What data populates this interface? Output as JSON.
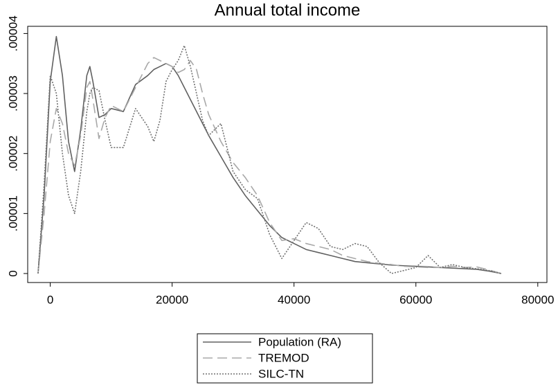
{
  "chart_data": {
    "type": "line",
    "title": "Annual total income",
    "x": [
      -2000,
      -1000,
      0,
      1000,
      2000,
      3000,
      4000,
      5000,
      6000,
      6500,
      7000,
      8000,
      9000,
      10000,
      12000,
      14000,
      16000,
      17000,
      18000,
      19000,
      20000,
      21000,
      22000,
      23000,
      24000,
      25000,
      26000,
      28000,
      30000,
      32000,
      34000,
      36000,
      38000,
      40000,
      42000,
      44000,
      46000,
      48000,
      50000,
      52000,
      54000,
      56000,
      58000,
      60000,
      62000,
      64000,
      66000,
      68000,
      70000,
      72000,
      74000
    ],
    "series": [
      {
        "name": "Population (RA)",
        "color": "#606060",
        "dash": "solid",
        "values": [
          0,
          1.3e-05,
          3.2e-05,
          3.95e-05,
          3.3e-05,
          2.2e-05,
          1.7e-05,
          2.4e-05,
          3.3e-05,
          3.45e-05,
          3.2e-05,
          2.6e-05,
          2.65e-05,
          2.75e-05,
          2.7e-05,
          3.15e-05,
          3.3e-05,
          3.4e-05,
          3.45e-05,
          3.5e-05,
          3.45e-05,
          3.3e-05,
          3.1e-05,
          2.9e-05,
          2.7e-05,
          2.5e-05,
          2.3e-05,
          1.95e-05,
          1.6e-05,
          1.3e-05,
          1.05e-05,
          8e-06,
          6e-06,
          5e-06,
          4e-06,
          3.5e-06,
          3e-06,
          2.5e-06,
          2e-06,
          1.8e-06,
          1.6e-06,
          1.4e-06,
          1.3e-06,
          1.2e-06,
          1.1e-06,
          1e-06,
          9e-07,
          8e-07,
          7e-07,
          4e-07,
          0
        ]
      },
      {
        "name": "TREMOD",
        "color": "#a8a8a8",
        "dash": "dashed",
        "values": [
          0,
          1e-05,
          2.2e-05,
          2.75e-05,
          2.5e-05,
          2e-05,
          1.8e-05,
          2.3e-05,
          3.1e-05,
          3.2e-05,
          2.9e-05,
          2.25e-05,
          2.6e-05,
          2.8e-05,
          2.7e-05,
          3.1e-05,
          3.5e-05,
          3.6e-05,
          3.55e-05,
          3.5e-05,
          3.45e-05,
          3.35e-05,
          3.4e-05,
          3.55e-05,
          3.4e-05,
          3e-05,
          2.65e-05,
          2.2e-05,
          1.85e-05,
          1.6e-05,
          1.3e-05,
          8.5e-06,
          5.5e-06,
          5.8e-06,
          5e-06,
          4.5e-06,
          4e-06,
          3e-06,
          2.5e-06,
          2e-06,
          1.7e-06,
          1.5e-06,
          1.2e-06,
          1.1e-06,
          1e-06,
          1e-06,
          1.2e-06,
          1e-06,
          1.1e-06,
          6e-07,
          0
        ]
      },
      {
        "name": "SILC-TN",
        "color": "#707070",
        "dash": "dotted",
        "values": [
          0,
          1.5e-05,
          3.3e-05,
          3e-05,
          2e-05,
          1.3e-05,
          1e-05,
          1.7e-05,
          2.7e-05,
          3e-05,
          3.1e-05,
          3.05e-05,
          2.55e-05,
          2.1e-05,
          2.1e-05,
          2.75e-05,
          2.45e-05,
          2.2e-05,
          2.55e-05,
          3.2e-05,
          3.4e-05,
          3.55e-05,
          3.8e-05,
          3.45e-05,
          3e-05,
          2.55e-05,
          2.3e-05,
          2.5e-05,
          1.7e-05,
          1.4e-05,
          1.25e-05,
          6.5e-06,
          2.5e-06,
          5.5e-06,
          8.5e-06,
          7.5e-06,
          4.5e-06,
          4e-06,
          5e-06,
          4.5e-06,
          1.8e-06,
          0,
          5e-07,
          1e-06,
          3e-06,
          1e-06,
          1.5e-06,
          1e-06,
          8e-07,
          5e-07,
          0
        ]
      }
    ],
    "xlim": [
      -3700,
      81500
    ],
    "xticks": [
      0,
      20000,
      40000,
      60000,
      80000
    ],
    "ylim": [
      -1.5e-06,
      4.12e-05
    ],
    "yticks": [
      0,
      {
        "value": 1e-05,
        "label": ".00001"
      },
      {
        "value": 2e-05,
        "label": ".00002"
      },
      {
        "value": 3e-05,
        "label": ".00003"
      },
      {
        "value": 4e-05,
        "label": ".00004"
      }
    ],
    "grid": false,
    "legend": "bottom"
  }
}
